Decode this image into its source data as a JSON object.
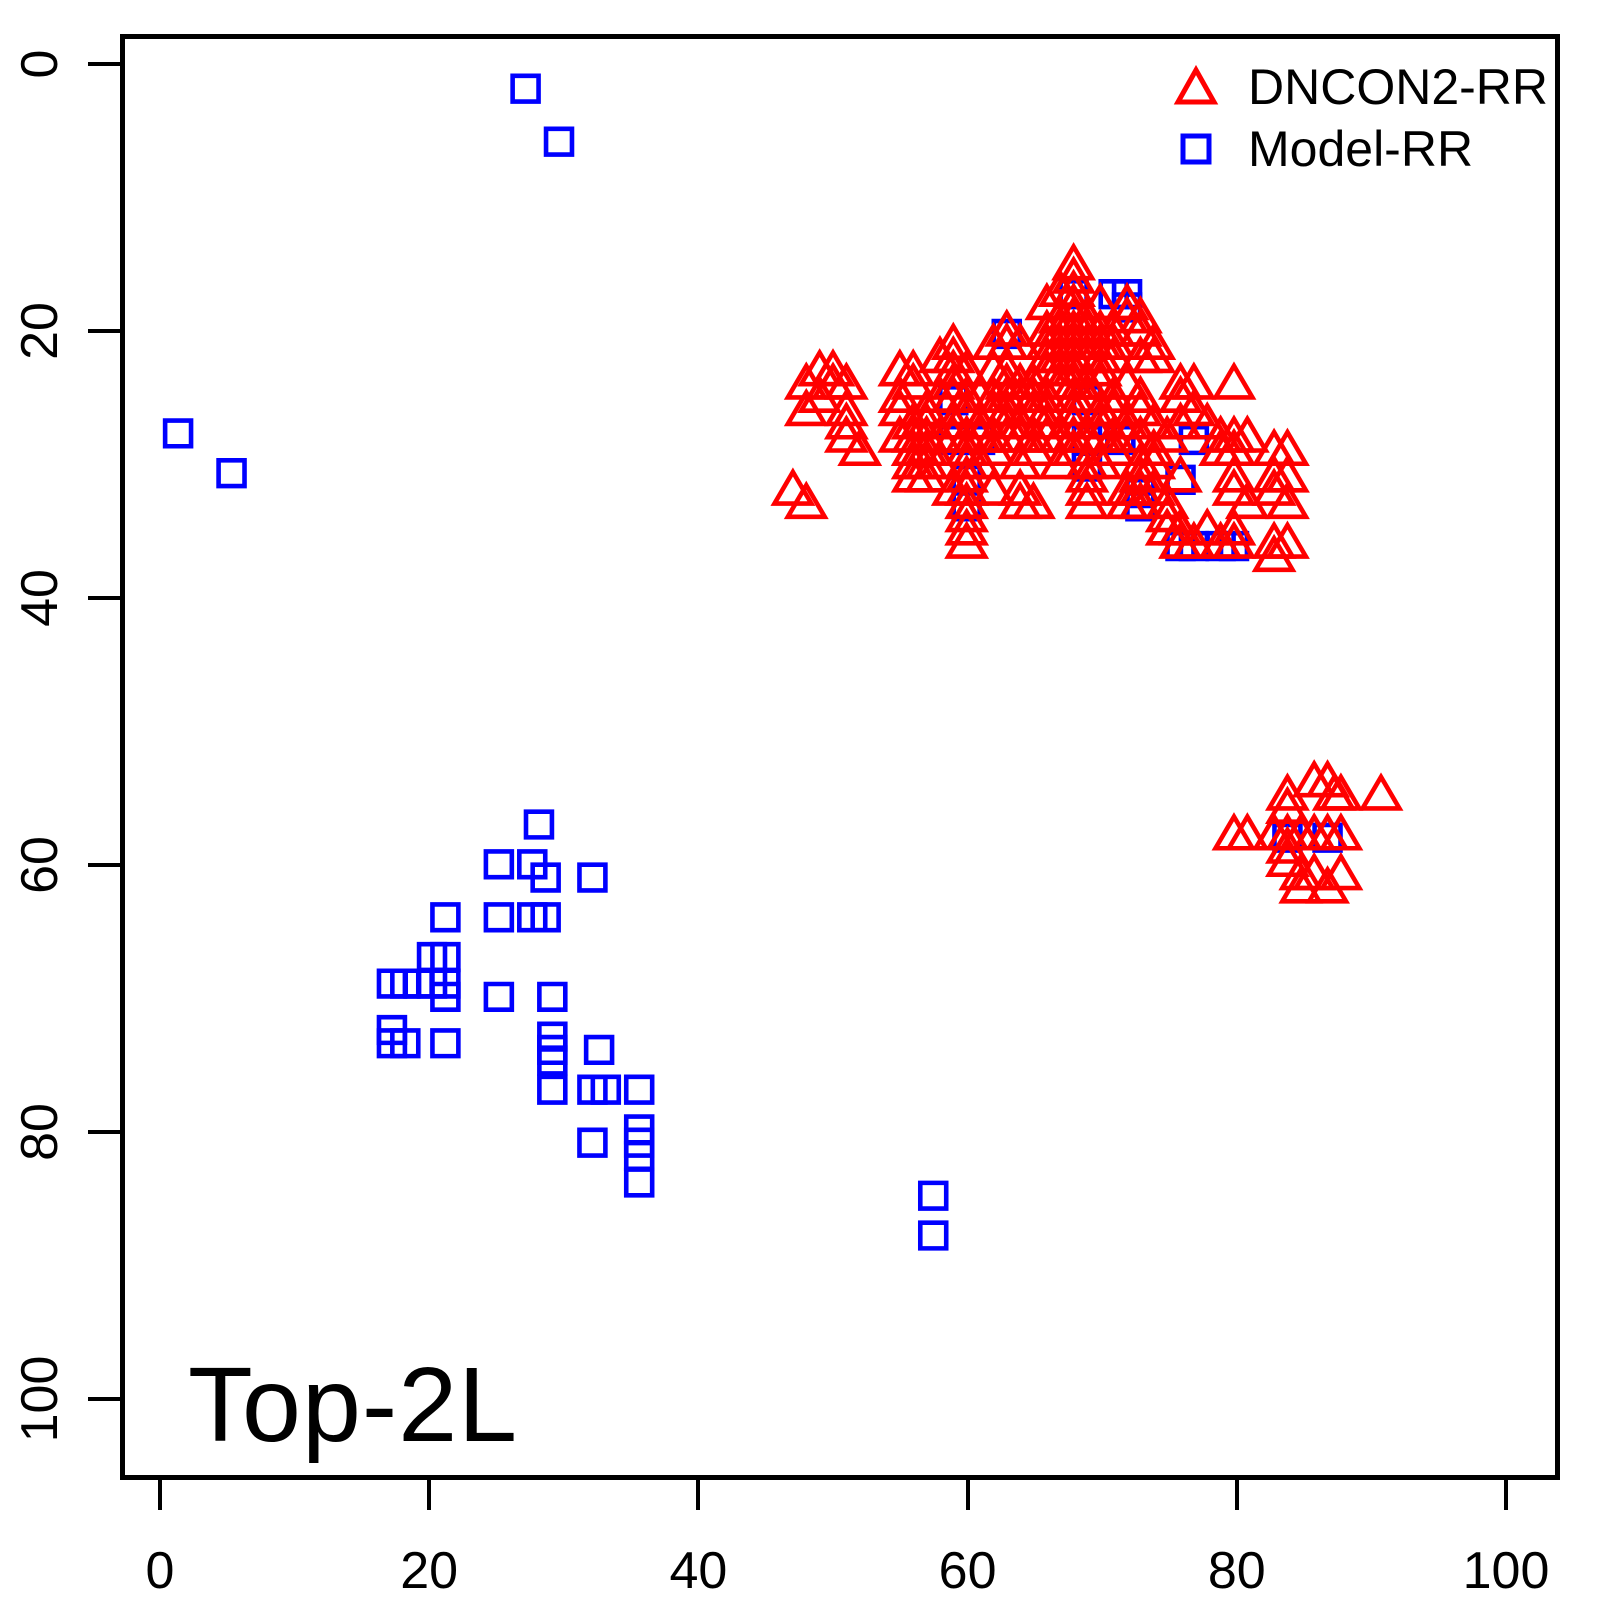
{
  "chart_data": {
    "type": "scatter",
    "annotation": "Top-2L",
    "x_ticks": [
      0,
      20,
      40,
      60,
      80,
      100
    ],
    "y_ticks": [
      0,
      20,
      40,
      60,
      80,
      100
    ],
    "axes": {
      "x_min": -3,
      "x_max": 102,
      "y_min": -2.2,
      "y_max": 106,
      "y_inverted": true,
      "grid": false
    },
    "legend": {
      "position": "top-right",
      "entries": [
        {
          "label": "DNCON2-RR",
          "marker": "triangle",
          "color": "#FF0000"
        },
        {
          "label": "Model-RR",
          "marker": "square",
          "color": "#0000FF"
        }
      ]
    },
    "series": [
      {
        "name": "DNCON2-RR",
        "marker": "triangle",
        "color": "#FF0000",
        "points": [
          [
            68,
            15
          ],
          [
            68,
            16
          ],
          [
            67,
            17
          ],
          [
            68,
            17
          ],
          [
            66,
            18
          ],
          [
            68,
            18
          ],
          [
            70,
            18
          ],
          [
            72,
            18
          ],
          [
            67,
            19
          ],
          [
            68,
            19
          ],
          [
            69,
            19
          ],
          [
            72,
            19
          ],
          [
            73,
            19
          ],
          [
            63,
            20
          ],
          [
            66,
            20
          ],
          [
            67,
            20
          ],
          [
            68,
            20
          ],
          [
            69,
            20
          ],
          [
            70,
            20
          ],
          [
            71,
            20
          ],
          [
            73,
            20
          ],
          [
            59,
            21
          ],
          [
            62,
            21
          ],
          [
            63,
            21
          ],
          [
            64,
            21
          ],
          [
            66,
            21
          ],
          [
            67,
            21
          ],
          [
            68,
            21
          ],
          [
            69,
            21
          ],
          [
            70,
            21
          ],
          [
            71,
            21
          ],
          [
            74,
            21
          ],
          [
            58,
            22
          ],
          [
            59,
            22
          ],
          [
            66,
            22
          ],
          [
            67,
            22
          ],
          [
            68,
            22
          ],
          [
            69,
            22
          ],
          [
            70,
            22
          ],
          [
            71,
            22
          ],
          [
            73,
            22
          ],
          [
            74,
            22
          ],
          [
            49,
            23
          ],
          [
            50,
            23
          ],
          [
            55,
            23
          ],
          [
            56,
            23
          ],
          [
            59,
            23
          ],
          [
            60,
            23
          ],
          [
            62,
            23
          ],
          [
            63,
            23
          ],
          [
            66,
            23
          ],
          [
            67,
            23
          ],
          [
            68,
            23
          ],
          [
            70,
            23
          ],
          [
            48,
            24
          ],
          [
            50,
            24
          ],
          [
            51,
            24
          ],
          [
            56,
            24
          ],
          [
            59,
            24
          ],
          [
            63,
            24
          ],
          [
            64,
            24
          ],
          [
            65,
            24
          ],
          [
            67,
            24
          ],
          [
            68,
            24
          ],
          [
            69,
            24
          ],
          [
            70,
            24
          ],
          [
            72,
            24
          ],
          [
            76,
            24
          ],
          [
            77,
            24
          ],
          [
            80,
            24
          ],
          [
            49,
            25
          ],
          [
            55,
            25
          ],
          [
            58,
            25
          ],
          [
            59,
            25
          ],
          [
            60,
            25
          ],
          [
            61,
            25
          ],
          [
            62,
            25
          ],
          [
            63,
            25
          ],
          [
            64,
            25
          ],
          [
            65,
            25
          ],
          [
            66,
            25
          ],
          [
            68,
            25
          ],
          [
            69,
            25
          ],
          [
            71,
            25
          ],
          [
            73,
            25
          ],
          [
            76,
            25
          ],
          [
            48,
            26
          ],
          [
            51,
            26
          ],
          [
            55,
            26
          ],
          [
            57,
            26
          ],
          [
            60,
            26
          ],
          [
            62,
            26
          ],
          [
            63,
            26
          ],
          [
            65,
            26
          ],
          [
            66,
            26
          ],
          [
            68,
            26
          ],
          [
            70,
            26
          ],
          [
            71,
            26
          ],
          [
            73,
            26
          ],
          [
            77,
            26
          ],
          [
            51,
            27
          ],
          [
            56,
            27
          ],
          [
            57,
            27
          ],
          [
            59,
            27
          ],
          [
            61,
            27
          ],
          [
            63,
            27
          ],
          [
            64,
            27
          ],
          [
            66,
            27
          ],
          [
            68,
            27
          ],
          [
            70,
            27
          ],
          [
            72,
            27
          ],
          [
            74,
            27
          ],
          [
            76,
            27
          ],
          [
            78,
            27
          ],
          [
            51,
            28
          ],
          [
            55,
            28
          ],
          [
            56,
            28
          ],
          [
            57,
            28
          ],
          [
            58,
            28
          ],
          [
            59,
            28
          ],
          [
            60,
            28
          ],
          [
            61,
            28
          ],
          [
            62,
            28
          ],
          [
            63,
            28
          ],
          [
            64,
            28
          ],
          [
            65,
            28
          ],
          [
            66,
            28
          ],
          [
            67,
            28
          ],
          [
            68,
            28
          ],
          [
            69,
            28
          ],
          [
            70,
            28
          ],
          [
            71,
            28
          ],
          [
            72,
            28
          ],
          [
            73,
            28
          ],
          [
            75,
            28
          ],
          [
            79,
            28
          ],
          [
            80,
            28
          ],
          [
            81,
            28
          ],
          [
            52,
            29
          ],
          [
            56,
            29
          ],
          [
            57,
            29
          ],
          [
            60,
            29
          ],
          [
            62,
            29
          ],
          [
            65,
            29
          ],
          [
            68,
            29
          ],
          [
            71,
            29
          ],
          [
            74,
            29
          ],
          [
            79,
            29
          ],
          [
            80,
            29
          ],
          [
            83,
            29
          ],
          [
            84,
            29
          ],
          [
            56,
            30
          ],
          [
            57,
            30
          ],
          [
            58,
            30
          ],
          [
            60,
            30
          ],
          [
            61,
            30
          ],
          [
            64,
            30
          ],
          [
            67,
            30
          ],
          [
            69,
            30
          ],
          [
            70,
            30
          ],
          [
            73,
            30
          ],
          [
            74,
            30
          ],
          [
            56,
            31
          ],
          [
            57,
            31
          ],
          [
            60,
            31
          ],
          [
            69,
            31
          ],
          [
            73,
            31
          ],
          [
            76,
            31
          ],
          [
            80,
            31
          ],
          [
            83,
            31
          ],
          [
            84,
            31
          ],
          [
            47,
            32
          ],
          [
            59,
            32
          ],
          [
            60,
            32
          ],
          [
            62,
            32
          ],
          [
            64,
            32
          ],
          [
            69,
            32
          ],
          [
            72,
            32
          ],
          [
            73,
            32
          ],
          [
            74,
            32
          ],
          [
            80,
            32
          ],
          [
            83,
            32
          ],
          [
            48,
            33
          ],
          [
            60,
            33
          ],
          [
            64,
            33
          ],
          [
            65,
            33
          ],
          [
            69,
            33
          ],
          [
            72,
            33
          ],
          [
            73,
            33
          ],
          [
            75,
            33
          ],
          [
            81,
            33
          ],
          [
            84,
            33
          ],
          [
            60,
            34
          ],
          [
            75,
            34
          ],
          [
            60,
            35
          ],
          [
            75,
            35
          ],
          [
            76,
            35
          ],
          [
            78,
            35
          ],
          [
            80,
            35
          ],
          [
            60,
            36
          ],
          [
            76,
            36
          ],
          [
            77,
            36
          ],
          [
            79,
            36
          ],
          [
            80,
            36
          ],
          [
            83,
            36
          ],
          [
            84,
            36
          ],
          [
            83,
            37
          ],
          [
            86,
            54
          ],
          [
            87,
            54
          ],
          [
            84,
            55
          ],
          [
            87.5,
            55
          ],
          [
            88,
            55
          ],
          [
            91,
            55
          ],
          [
            84,
            56
          ],
          [
            80,
            58
          ],
          [
            81,
            58
          ],
          [
            83,
            58
          ],
          [
            84,
            58
          ],
          [
            85,
            58
          ],
          [
            86,
            58
          ],
          [
            87,
            58
          ],
          [
            88,
            58
          ],
          [
            84,
            59
          ],
          [
            84,
            60
          ],
          [
            85,
            61
          ],
          [
            86,
            61
          ],
          [
            88,
            61
          ],
          [
            85,
            62
          ],
          [
            87,
            62
          ]
        ]
      },
      {
        "name": "Model-RR",
        "marker": "square",
        "color": "#0000FF",
        "points": [
          [
            27,
            1.5
          ],
          [
            29.5,
            5.5
          ],
          [
            1,
            27.5
          ],
          [
            5,
            30.5
          ],
          [
            68,
            17
          ],
          [
            71,
            17
          ],
          [
            72,
            17
          ],
          [
            72,
            18
          ],
          [
            63,
            20
          ],
          [
            59,
            25
          ],
          [
            69,
            25
          ],
          [
            59,
            28
          ],
          [
            61,
            28
          ],
          [
            69,
            28
          ],
          [
            71.5,
            28
          ],
          [
            77,
            28
          ],
          [
            69,
            30
          ],
          [
            60,
            31
          ],
          [
            76,
            31
          ],
          [
            73,
            32
          ],
          [
            60,
            33
          ],
          [
            73,
            33
          ],
          [
            76,
            36
          ],
          [
            77,
            36
          ],
          [
            79,
            36
          ],
          [
            80,
            36
          ],
          [
            28,
            57
          ],
          [
            25,
            60
          ],
          [
            27.5,
            60
          ],
          [
            28.5,
            61
          ],
          [
            32,
            61
          ],
          [
            21,
            64
          ],
          [
            25,
            64
          ],
          [
            27.5,
            64
          ],
          [
            28.5,
            64
          ],
          [
            20,
            67
          ],
          [
            21,
            67
          ],
          [
            17,
            69
          ],
          [
            18,
            69
          ],
          [
            19,
            69
          ],
          [
            20,
            69
          ],
          [
            21,
            69
          ],
          [
            21,
            70
          ],
          [
            25,
            70
          ],
          [
            29,
            70
          ],
          [
            17,
            72.5
          ],
          [
            17,
            73.5
          ],
          [
            18,
            73.5
          ],
          [
            21,
            73.5
          ],
          [
            29,
            73
          ],
          [
            29,
            74
          ],
          [
            29,
            74.8
          ],
          [
            32.5,
            74
          ],
          [
            29,
            77
          ],
          [
            32,
            77
          ],
          [
            33,
            77
          ],
          [
            35.5,
            77
          ],
          [
            35.5,
            80
          ],
          [
            32,
            81
          ],
          [
            35.5,
            81
          ],
          [
            35.5,
            82
          ],
          [
            35.5,
            84
          ],
          [
            57.5,
            85
          ],
          [
            57.5,
            88
          ],
          [
            84,
            58
          ],
          [
            87,
            58
          ]
        ]
      }
    ]
  }
}
